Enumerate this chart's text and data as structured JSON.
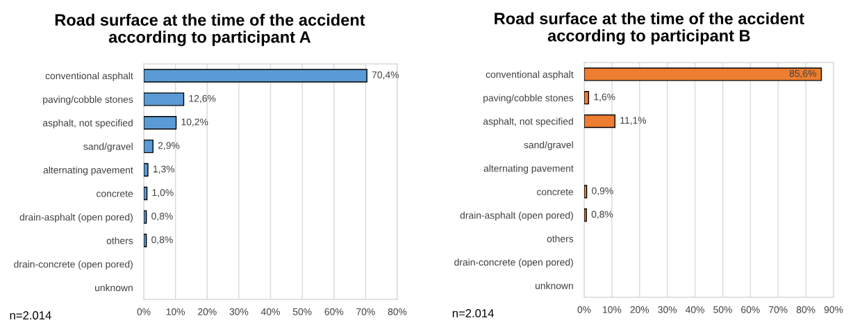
{
  "chart_data": [
    {
      "type": "bar",
      "orientation": "horizontal",
      "title": "Road surface at the time of the accident\naccording to participant A",
      "categories": [
        "conventional asphalt",
        "paving/cobble stones",
        "asphalt, not specified",
        "sand/gravel",
        "alternating pavement",
        "concrete",
        "drain-asphalt (open pored)",
        "others",
        "drain-concrete (open pored)",
        "unknown"
      ],
      "values": [
        70.4,
        12.6,
        10.2,
        2.9,
        1.3,
        1.0,
        0.8,
        0.8,
        null,
        null
      ],
      "value_labels": [
        "70,4%",
        "12,6%",
        "10,2%",
        "2,9%",
        "1,3%",
        "1,0%",
        "0,8%",
        "0,8%",
        null,
        null
      ],
      "color": "#5b9bd5",
      "xlim": [
        0,
        80
      ],
      "xticks": [
        {
          "value": 0,
          "label": "0%"
        },
        {
          "value": 10,
          "label": "10%"
        },
        {
          "value": 20,
          "label": "20%"
        },
        {
          "value": 30,
          "label": "30%"
        },
        {
          "value": 40,
          "label": "40%"
        },
        {
          "value": 50,
          "label": "50%"
        },
        {
          "value": 60,
          "label": "60%"
        },
        {
          "value": 70,
          "label": "70%"
        },
        {
          "value": 80,
          "label": "80%"
        }
      ],
      "grid": "x",
      "annotations": [
        "n=2.014"
      ]
    },
    {
      "type": "bar",
      "orientation": "horizontal",
      "title": "Road surface at the time of the accident\naccording to participant B",
      "categories": [
        "conventional asphalt",
        "paving/cobble stones",
        "asphalt, not specified",
        "sand/gravel",
        "alternating pavement",
        "concrete",
        "drain-asphalt (open pored)",
        "others",
        "drain-concrete (open pored)",
        "unknown"
      ],
      "values": [
        85.6,
        1.6,
        11.1,
        null,
        null,
        0.9,
        0.8,
        null,
        null,
        null
      ],
      "value_labels": [
        "85,6%",
        "1,6%",
        "11,1%",
        null,
        null,
        "0,9%",
        "0,8%",
        null,
        null,
        null
      ],
      "color": "#ed7d31",
      "xlim": [
        0,
        90
      ],
      "xticks": [
        {
          "value": 0,
          "label": "0%"
        },
        {
          "value": 10,
          "label": "10%"
        },
        {
          "value": 20,
          "label": "20%"
        },
        {
          "value": 30,
          "label": "30%"
        },
        {
          "value": 40,
          "label": "40%"
        },
        {
          "value": 50,
          "label": "50%"
        },
        {
          "value": 60,
          "label": "60%"
        },
        {
          "value": 70,
          "label": "70%"
        },
        {
          "value": 80,
          "label": "80%"
        },
        {
          "value": 90,
          "label": "90%"
        }
      ],
      "grid": "x",
      "annotations": [
        "n=2.014"
      ]
    }
  ]
}
